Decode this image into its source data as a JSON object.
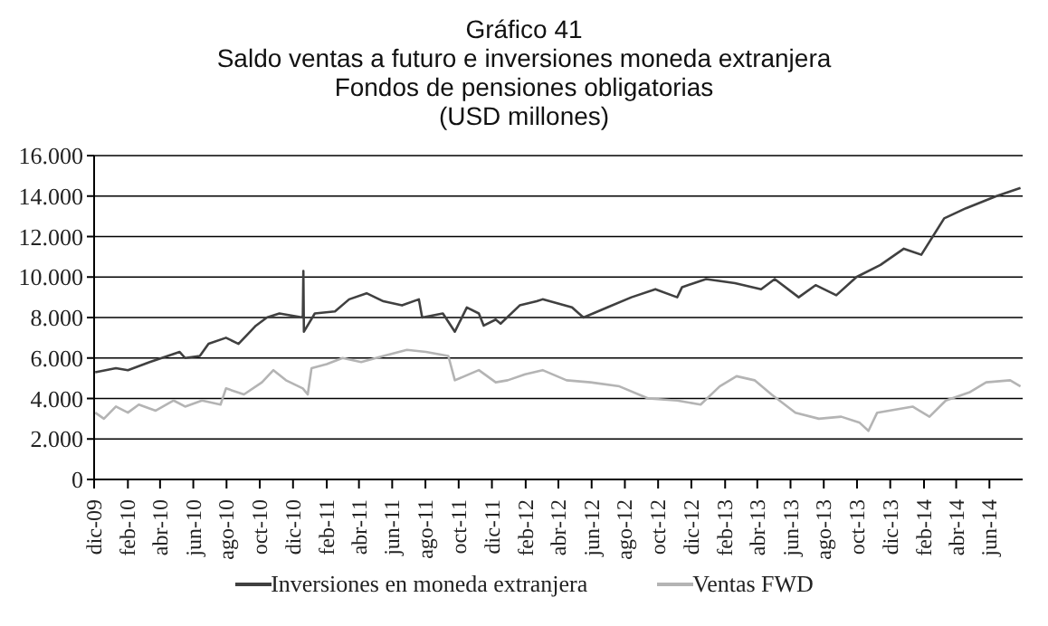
{
  "chart_data": {
    "type": "line",
    "title": "Gráfico 41",
    "subtitle": "Saldo ventas a futuro e inversiones moneda extranjera\nFondos de pensiones obligatorias\n(USD millones)",
    "series": [
      {
        "name": "Inversiones en moneda extranjera",
        "color": "#404040",
        "x": [
          "2009-12-03",
          "2010-01-10",
          "2010-02-01",
          "2010-03-13",
          "2010-04-15",
          "2010-05-07",
          "2010-05-17",
          "2010-06-13",
          "2010-06-29",
          "2010-07-31",
          "2010-08-23",
          "2010-09-24",
          "2010-10-14",
          "2010-11-06",
          "2010-12-19",
          "2010-12-20",
          "2010-12-21",
          "2011-01-10",
          "2011-02-16",
          "2011-03-14",
          "2011-04-15",
          "2011-05-16",
          "2011-06-19",
          "2011-07-20",
          "2011-07-26",
          "2011-09-02",
          "2011-09-24",
          "2011-10-16",
          "2011-11-07",
          "2011-11-16",
          "2011-12-08",
          "2011-12-17",
          "2012-01-21",
          "2012-02-21",
          "2012-03-03",
          "2012-04-26",
          "2012-05-17",
          "2012-06-30",
          "2012-08-13",
          "2012-09-26",
          "2012-11-05",
          "2012-11-14",
          "2012-12-28",
          "2013-02-19",
          "2013-04-08",
          "2013-05-03",
          "2013-06-16",
          "2013-07-17",
          "2013-08-24",
          "2013-09-30",
          "2013-11-13",
          "2013-12-26",
          "2014-01-27",
          "2014-03-10",
          "2014-04-19",
          "2014-06-14",
          "2014-07-28"
        ],
        "values": [
          5300,
          5500,
          5400,
          5800,
          6100,
          6300,
          6000,
          6100,
          6700,
          7000,
          6700,
          7600,
          8000,
          8200,
          8000,
          10300,
          7300,
          8200,
          8300,
          8900,
          9200,
          8800,
          8600,
          8900,
          8000,
          8200,
          7300,
          8500,
          8200,
          7600,
          7900,
          7700,
          8600,
          8800,
          8900,
          8500,
          8000,
          8500,
          9000,
          9400,
          9000,
          9500,
          9900,
          9700,
          9400,
          9900,
          9000,
          9600,
          9100,
          10000,
          10600,
          11400,
          11100,
          12900,
          13400,
          14000,
          14400
        ]
      },
      {
        "name": "Ventas FWD",
        "color": "#b4b4b4",
        "x": [
          "2009-12-03",
          "2009-12-19",
          "2010-01-10",
          "2010-02-01",
          "2010-02-21",
          "2010-03-24",
          "2010-04-26",
          "2010-05-17",
          "2010-06-17",
          "2010-07-21",
          "2010-07-31",
          "2010-09-02",
          "2010-10-05",
          "2010-10-26",
          "2010-11-18",
          "2010-12-19",
          "2010-12-28",
          "2011-01-04",
          "2011-02-01",
          "2011-03-02",
          "2011-04-05",
          "2011-05-16",
          "2011-06-28",
          "2011-08-02",
          "2011-09-12",
          "2011-09-24",
          "2011-11-07",
          "2011-12-08",
          "2011-12-30",
          "2012-01-31",
          "2012-03-03",
          "2012-04-16",
          "2012-05-30",
          "2012-07-22",
          "2012-09-13",
          "2012-11-05",
          "2012-12-18",
          "2013-01-22",
          "2013-02-22",
          "2013-03-27",
          "2013-04-27",
          "2013-06-10",
          "2013-07-23",
          "2013-09-02",
          "2013-10-06",
          "2013-10-22",
          "2013-11-07",
          "2014-01-11",
          "2014-02-11",
          "2014-03-13",
          "2014-04-25",
          "2014-05-26",
          "2014-07-09",
          "2014-07-28"
        ],
        "values": [
          3300,
          3000,
          3600,
          3300,
          3700,
          3400,
          3900,
          3600,
          3900,
          3700,
          4500,
          4200,
          4800,
          5400,
          4900,
          4500,
          4200,
          5500,
          5700,
          6000,
          5800,
          6100,
          6400,
          6300,
          6100,
          4900,
          5400,
          4800,
          4900,
          5200,
          5400,
          4900,
          4800,
          4600,
          4000,
          3900,
          3700,
          4600,
          5100,
          4900,
          4200,
          3300,
          3000,
          3100,
          2800,
          2400,
          3300,
          3600,
          3100,
          3900,
          4300,
          4800,
          4900,
          4600
        ]
      }
    ],
    "xlim": [
      "2009-12-01",
      "2014-08-01"
    ],
    "xticks": [
      {
        "value": "2009-12-01",
        "label": "dic-09"
      },
      {
        "value": "2010-02-01",
        "label": "feb-10"
      },
      {
        "value": "2010-04-01",
        "label": "abr-10"
      },
      {
        "value": "2010-06-01",
        "label": "jun-10"
      },
      {
        "value": "2010-08-01",
        "label": "ago-10"
      },
      {
        "value": "2010-10-01",
        "label": "oct-10"
      },
      {
        "value": "2010-12-01",
        "label": "dic-10"
      },
      {
        "value": "2011-02-01",
        "label": "feb-11"
      },
      {
        "value": "2011-04-01",
        "label": "abr-11"
      },
      {
        "value": "2011-06-01",
        "label": "jun-11"
      },
      {
        "value": "2011-08-01",
        "label": "ago-11"
      },
      {
        "value": "2011-10-01",
        "label": "oct-11"
      },
      {
        "value": "2011-12-01",
        "label": "dic-11"
      },
      {
        "value": "2012-02-01",
        "label": "feb-12"
      },
      {
        "value": "2012-04-01",
        "label": "abr-12"
      },
      {
        "value": "2012-06-01",
        "label": "jun-12"
      },
      {
        "value": "2012-08-01",
        "label": "ago-12"
      },
      {
        "value": "2012-10-01",
        "label": "oct-12"
      },
      {
        "value": "2012-12-01",
        "label": "dic-12"
      },
      {
        "value": "2013-02-01",
        "label": "feb-13"
      },
      {
        "value": "2013-04-01",
        "label": "abr-13"
      },
      {
        "value": "2013-06-01",
        "label": "jun-13"
      },
      {
        "value": "2013-08-01",
        "label": "ago-13"
      },
      {
        "value": "2013-10-01",
        "label": "oct-13"
      },
      {
        "value": "2013-12-01",
        "label": "dic-13"
      },
      {
        "value": "2014-02-01",
        "label": "feb-14"
      },
      {
        "value": "2014-04-01",
        "label": "abr-14"
      },
      {
        "value": "2014-06-01",
        "label": "jun-14"
      }
    ],
    "ylim": [
      0,
      16000
    ],
    "yticks": [
      0,
      {
        "value": 2000,
        "label": "2.000"
      },
      {
        "value": 4000,
        "label": "4.000"
      },
      {
        "value": 6000,
        "label": "6.000"
      },
      {
        "value": 8000,
        "label": "8.000"
      },
      {
        "value": 10000,
        "label": "10.000"
      },
      {
        "value": 12000,
        "label": "12.000"
      },
      {
        "value": 14000,
        "label": "14.000"
      },
      {
        "value": 16000,
        "label": "16.000"
      }
    ],
    "grid": "y",
    "legend": "bottom",
    "marker": "none",
    "line_style": "solid"
  }
}
